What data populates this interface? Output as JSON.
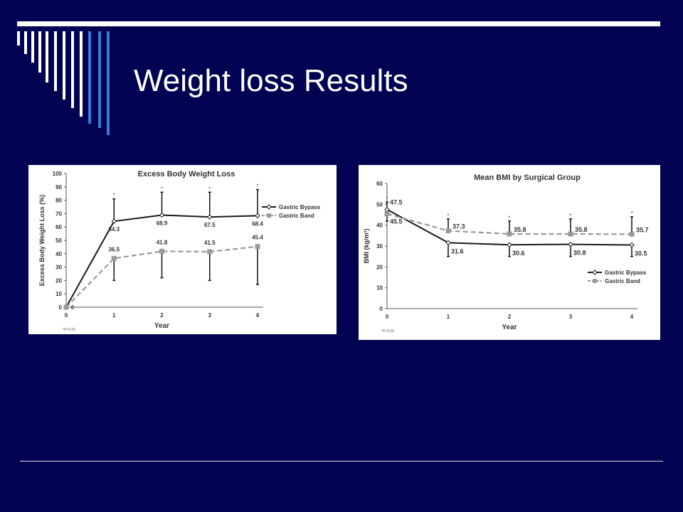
{
  "slide": {
    "title": "Weight loss Results"
  },
  "chart_data": [
    {
      "type": "line",
      "title": "Excess Body Weight Loss",
      "xlabel": "Year",
      "ylabel": "Excess Body Weight Loss (%)",
      "x": [
        0,
        1,
        2,
        3,
        4
      ],
      "xlim": [
        0,
        4
      ],
      "ylim": [
        0,
        100
      ],
      "yticks": [
        0,
        10,
        20,
        30,
        40,
        50,
        60,
        70,
        80,
        90,
        100
      ],
      "footnote": "*P<0.05",
      "legend_position": "right",
      "series": [
        {
          "name": "Gastric Bypass",
          "values": [
            0,
            64.3,
            68.9,
            67.5,
            68.4
          ],
          "labels": [
            "0",
            "64.3",
            "68.9",
            "67.5",
            "68.4"
          ],
          "error_upper": [
            0,
            81,
            86,
            86,
            88
          ],
          "style": "solid",
          "marker": "diamond",
          "color": "#1a1a1a"
        },
        {
          "name": "Gastric Band",
          "values": [
            0,
            36.5,
            41.8,
            41.5,
            45.4
          ],
          "labels": [
            "",
            "36.5",
            "41.8",
            "41.5",
            "45.4"
          ],
          "error_lower": [
            0,
            20,
            22,
            20,
            17
          ],
          "style": "dashed",
          "marker": "square",
          "color": "#999999"
        }
      ],
      "significance": [
        "",
        "*",
        "*",
        "*",
        "*"
      ]
    },
    {
      "type": "line",
      "title": "Mean BMI by Surgical Group",
      "xlabel": "Year",
      "ylabel": "BMI (kg/m²)",
      "x": [
        0,
        1,
        2,
        3,
        4
      ],
      "xlim": [
        0,
        4
      ],
      "ylim": [
        0,
        60
      ],
      "yticks": [
        0,
        10,
        20,
        30,
        40,
        50,
        60
      ],
      "footnote": "*P<0.05",
      "legend_position": "bottom-right",
      "series": [
        {
          "name": "Gastric Bypass",
          "values": [
            47.5,
            31.6,
            30.6,
            30.8,
            30.5
          ],
          "labels": [
            "47.5",
            "31.6",
            "30.6",
            "30.8",
            "30.5"
          ],
          "error_lower": [
            42,
            25,
            25,
            25,
            25
          ],
          "style": "solid",
          "marker": "diamond",
          "color": "#1a1a1a"
        },
        {
          "name": "Gastric Band",
          "values": [
            45.5,
            37.3,
            35.8,
            35.8,
            35.7
          ],
          "labels": [
            "45.5",
            "37.3",
            "35.8",
            "35.8",
            "35.7"
          ],
          "error_upper": [
            51,
            43,
            42,
            43,
            44
          ],
          "style": "dashed",
          "marker": "square",
          "color": "#999999"
        }
      ],
      "significance": [
        "*",
        "*",
        "*",
        "*",
        "*"
      ]
    }
  ]
}
